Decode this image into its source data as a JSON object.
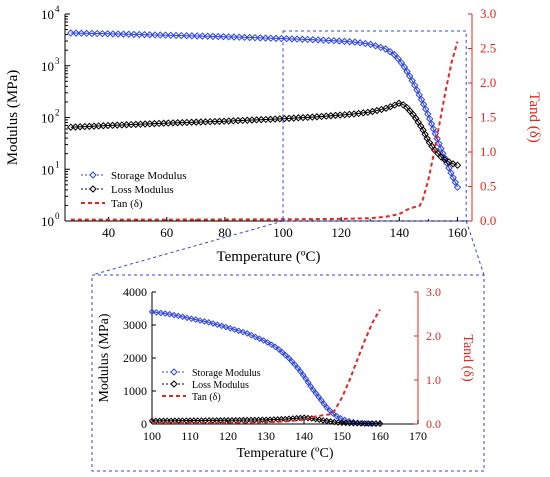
{
  "colors": {
    "storage": "#2f45e0",
    "loss": "#000000",
    "tan": "#e8251f",
    "connector": "#2f45e0"
  },
  "chart_data": [
    {
      "id": "main",
      "type": "line",
      "title": "",
      "xlabel": "Temperature (ºC)",
      "ylabel": "Modulus (MPa)",
      "y2label": "Tand (δ)",
      "xlim": [
        25,
        165
      ],
      "ylim": [
        1,
        10000
      ],
      "yscale": "log",
      "y2lim": [
        0,
        3
      ],
      "grid": false,
      "legend_placement": "bottom-left",
      "xticks": [
        "40",
        "60",
        "80",
        "100",
        "120",
        "140",
        "160"
      ],
      "yticks": [
        "10",
        "10",
        "10",
        "10",
        "10"
      ],
      "ytick_exponents": [
        "0",
        "1",
        "2",
        "3",
        "4"
      ],
      "y2ticks": [
        "0.0",
        "0.5",
        "1.0",
        "1.5",
        "2.0",
        "2.5",
        "3.0"
      ],
      "legend": [
        "Storage Modulus",
        "Loss Modulus",
        "Tan (δ)"
      ],
      "series": [
        {
          "name": "Storage Modulus",
          "axis": "left",
          "x": [
            27,
            40,
            60,
            80,
            100,
            110,
            120,
            125,
            130,
            135,
            138,
            140,
            142,
            145,
            148,
            150,
            152,
            155,
            158,
            160
          ],
          "y": [
            4300,
            4150,
            3900,
            3650,
            3350,
            3200,
            3000,
            2850,
            2600,
            2150,
            1700,
            1300,
            900,
            450,
            200,
            110,
            55,
            20,
            8,
            4.5
          ]
        },
        {
          "name": "Loss Modulus",
          "axis": "left",
          "x": [
            27,
            40,
            60,
            80,
            100,
            110,
            120,
            125,
            130,
            135,
            138,
            140,
            142,
            145,
            148,
            150,
            152,
            155,
            158,
            160
          ],
          "y": [
            65,
            70,
            78,
            85,
            95,
            102,
            112,
            118,
            128,
            148,
            170,
            190,
            170,
            110,
            60,
            35,
            24,
            16,
            13,
            12
          ]
        },
        {
          "name": "Tan (δ)",
          "axis": "right",
          "x": [
            27,
            60,
            100,
            120,
            130,
            135,
            140,
            143,
            145,
            147,
            148,
            150,
            152,
            154,
            156,
            158,
            160
          ],
          "y": [
            0.02,
            0.02,
            0.025,
            0.03,
            0.04,
            0.06,
            0.1,
            0.17,
            0.2,
            0.22,
            0.3,
            0.6,
            1.0,
            1.45,
            1.9,
            2.3,
            2.6
          ]
        }
      ]
    },
    {
      "id": "inset",
      "type": "line",
      "title": "",
      "xlabel": "Temperature (ºC)",
      "ylabel": "Modulus (MPa)",
      "y2label": "Tand (δ)",
      "xlim": [
        100,
        170
      ],
      "ylim": [
        0,
        4000
      ],
      "yscale": "linear",
      "y2lim": [
        0,
        3
      ],
      "grid": false,
      "legend_placement": "bottom-left",
      "xticks": [
        "100",
        "110",
        "120",
        "130",
        "140",
        "150",
        "160",
        "170"
      ],
      "yticks": [
        "0",
        "1000",
        "2000",
        "3000",
        "4000"
      ],
      "y2ticks": [
        "0.0",
        "1.0",
        "2.0",
        "3.0"
      ],
      "legend": [
        "Storage Modulus",
        "Loss Modulus",
        "Tan (δ)"
      ],
      "series": [
        {
          "name": "Storage Modulus",
          "axis": "left",
          "x": [
            100,
            105,
            110,
            115,
            120,
            125,
            130,
            133,
            136,
            138,
            140,
            142,
            144,
            146,
            148,
            150,
            152,
            154,
            156,
            158,
            160
          ],
          "y": [
            3400,
            3320,
            3200,
            3080,
            2920,
            2750,
            2500,
            2300,
            2000,
            1750,
            1450,
            1100,
            800,
            500,
            280,
            150,
            80,
            40,
            20,
            10,
            5
          ]
        },
        {
          "name": "Loss Modulus",
          "axis": "left",
          "x": [
            100,
            110,
            120,
            130,
            135,
            140,
            142,
            145,
            148,
            150,
            155,
            160
          ],
          "y": [
            95,
            102,
            112,
            128,
            148,
            190,
            170,
            110,
            60,
            35,
            16,
            12
          ]
        },
        {
          "name": "Tan (δ)",
          "axis": "right",
          "x": [
            100,
            120,
            130,
            135,
            140,
            143,
            145,
            147,
            148,
            150,
            152,
            154,
            156,
            158,
            160
          ],
          "y": [
            0.025,
            0.03,
            0.04,
            0.06,
            0.1,
            0.17,
            0.2,
            0.22,
            0.3,
            0.6,
            1.0,
            1.45,
            1.9,
            2.3,
            2.6
          ]
        }
      ]
    }
  ]
}
